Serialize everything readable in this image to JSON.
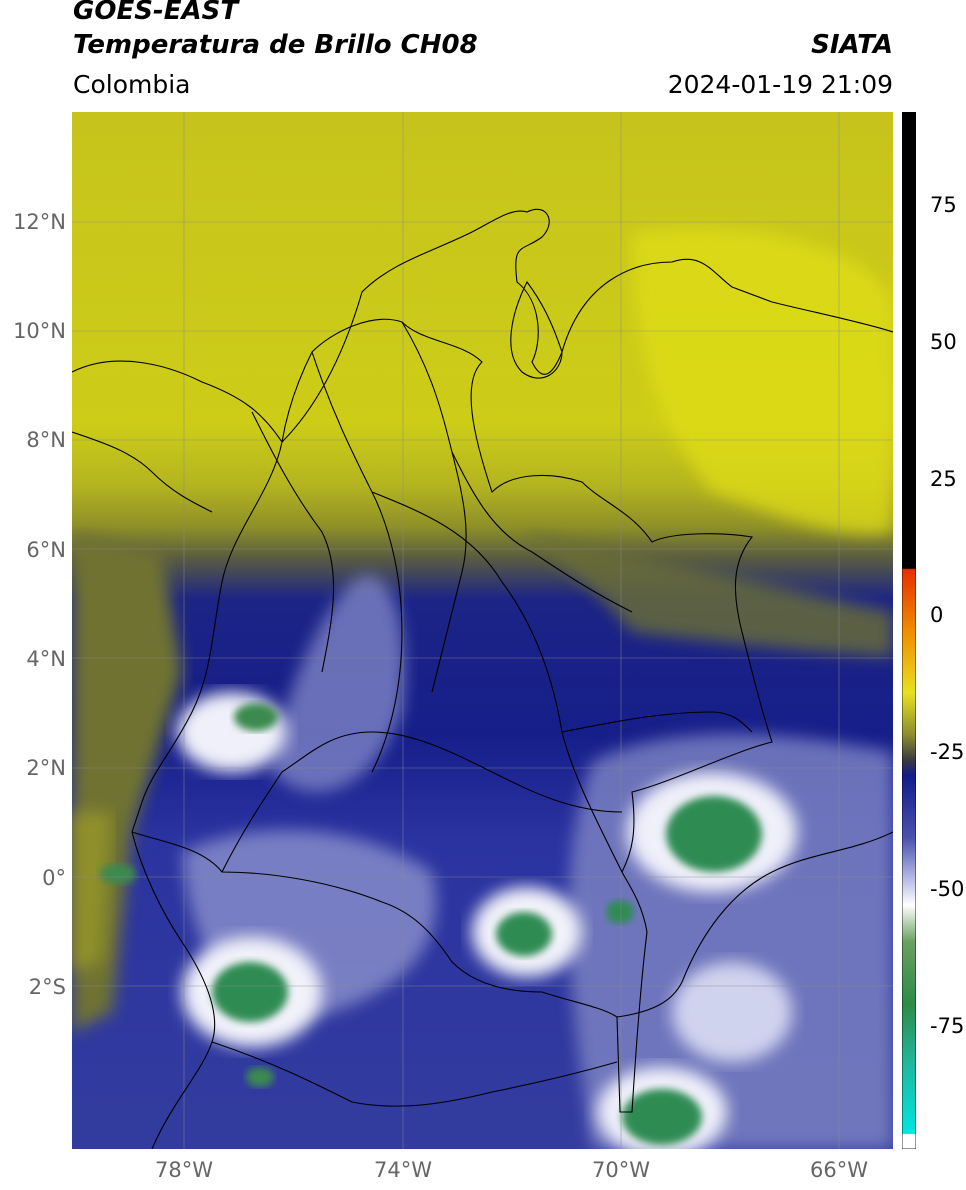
{
  "header": {
    "line1": "GOES-EAST",
    "line2": "Temperatura de Brillo CH08",
    "brand": "SIATA",
    "region": "Colombia",
    "timestamp": "2024-01-19 21:09"
  },
  "axes": {
    "lat_labels": [
      "12°N",
      "10°N",
      "8°N",
      "6°N",
      "4°N",
      "2°N",
      "0°",
      "2°S"
    ],
    "lon_labels": [
      "78°W",
      "74°W",
      "70°W",
      "66°W"
    ]
  },
  "colorbar": {
    "ticks": [
      "75",
      "50",
      "25",
      "0",
      "-25",
      "-50",
      "-75"
    ],
    "colors": {
      "black": "#000000",
      "red": "#e62e00",
      "orange": "#f08c00",
      "yellow": "#e8e020",
      "olive": "#5a5a3a",
      "navy": "#121b8c",
      "lavender": "#b8bce6",
      "white": "#ffffff",
      "green": "#2e8b4a",
      "cyan": "#00e5e0"
    }
  },
  "map_colors": {
    "yellow_bright": "#e3e018",
    "yellow": "#cbcc18",
    "olive": "#9ea024",
    "olive_dark": "#6c6f35",
    "navy": "#141c88",
    "blue": "#3b44a3",
    "lavender": "#8e93cc",
    "white": "#f2f2fa",
    "green": "#2f8c52"
  }
}
